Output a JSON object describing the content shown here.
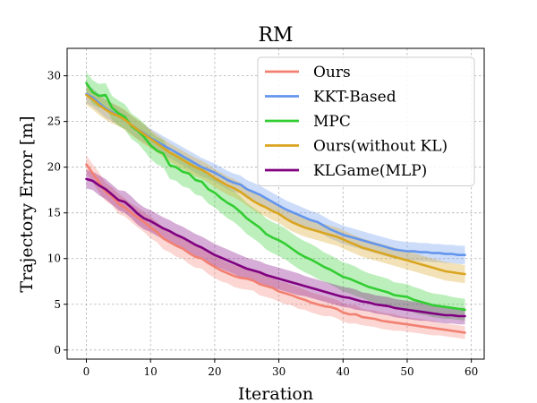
{
  "chart_data": {
    "type": "line",
    "title": "RM",
    "xlabel": "Iteration",
    "ylabel": "Trajectory Error [m]",
    "xlim": [
      -3,
      62
    ],
    "ylim": [
      -1,
      33
    ],
    "xticks": [
      0,
      10,
      20,
      30,
      40,
      50,
      60
    ],
    "yticks": [
      0,
      5,
      10,
      15,
      20,
      25,
      30
    ],
    "grid": true,
    "legend_position": "top-right",
    "x": [
      0,
      1,
      2,
      3,
      4,
      5,
      6,
      7,
      8,
      9,
      10,
      11,
      12,
      13,
      14,
      15,
      16,
      17,
      18,
      19,
      20,
      21,
      22,
      23,
      24,
      25,
      26,
      27,
      28,
      29,
      30,
      31,
      32,
      33,
      34,
      35,
      36,
      37,
      38,
      39,
      40,
      41,
      42,
      43,
      44,
      45,
      46,
      47,
      48,
      49,
      50,
      51,
      52,
      53,
      54,
      55,
      56,
      57,
      58,
      59
    ],
    "series": [
      {
        "name": "Ours",
        "color": "#f28072",
        "values": [
          20.3,
          19.3,
          18.3,
          17.3,
          16.8,
          16.0,
          15.6,
          15.0,
          14.5,
          14.0,
          13.4,
          12.9,
          12.2,
          11.8,
          11.4,
          11.1,
          10.6,
          10.2,
          10.0,
          9.5,
          9.1,
          8.7,
          8.4,
          8.1,
          7.9,
          7.8,
          7.6,
          7.2,
          7.0,
          6.8,
          6.4,
          6.2,
          6.0,
          5.7,
          5.5,
          5.2,
          5.0,
          4.8,
          4.7,
          4.5,
          4.1,
          3.9,
          3.9,
          3.6,
          3.5,
          3.4,
          3.2,
          3.1,
          3.0,
          2.9,
          2.8,
          2.7,
          2.6,
          2.5,
          2.4,
          2.3,
          2.2,
          2.1,
          2.0,
          1.9
        ],
        "band": [
          1.0,
          1.0,
          1.1,
          1.0,
          1.0,
          1.1,
          1.0,
          1.0,
          1.1,
          1.1,
          1.2,
          1.1,
          1.2,
          1.1,
          1.2,
          1.1,
          1.2,
          1.2,
          1.1,
          1.2,
          1.2,
          1.2,
          1.1,
          1.2,
          1.2,
          1.2,
          1.1,
          1.2,
          1.2,
          1.2,
          1.1,
          1.2,
          1.1,
          1.2,
          1.1,
          1.1,
          1.1,
          1.1,
          1.0,
          1.0,
          1.0,
          1.0,
          1.0,
          0.9,
          0.9,
          0.9,
          0.9,
          0.9,
          0.9,
          0.8,
          0.8,
          0.8,
          0.8,
          0.8,
          0.8,
          0.7,
          0.7,
          0.7,
          0.7,
          0.7
        ]
      },
      {
        "name": "KKT-Based",
        "color": "#6495ed",
        "values": [
          28.0,
          27.6,
          27.0,
          26.4,
          26.0,
          25.6,
          25.2,
          24.6,
          24.1,
          23.7,
          23.2,
          22.8,
          22.4,
          22.0,
          21.6,
          21.2,
          20.8,
          20.4,
          20.0,
          19.7,
          19.4,
          19.0,
          18.6,
          18.3,
          18.1,
          17.6,
          17.3,
          17.0,
          16.6,
          16.2,
          15.8,
          15.4,
          15.1,
          14.8,
          14.5,
          14.2,
          14.0,
          13.6,
          13.2,
          12.9,
          12.6,
          12.4,
          12.2,
          12.0,
          11.8,
          11.6,
          11.4,
          11.2,
          11.0,
          10.9,
          10.8,
          10.8,
          10.7,
          10.7,
          10.6,
          10.6,
          10.5,
          10.5,
          10.4,
          10.4
        ],
        "band": [
          1.0,
          1.0,
          1.0,
          1.0,
          1.0,
          1.0,
          1.0,
          1.0,
          1.0,
          1.0,
          1.0,
          1.0,
          1.0,
          1.0,
          1.0,
          1.0,
          1.0,
          1.0,
          1.0,
          1.0,
          1.0,
          1.0,
          1.0,
          1.0,
          1.0,
          1.0,
          1.0,
          1.0,
          1.0,
          1.0,
          1.0,
          1.0,
          1.0,
          1.0,
          1.0,
          1.0,
          1.0,
          1.0,
          1.0,
          1.0,
          1.0,
          1.0,
          1.0,
          1.0,
          1.0,
          1.0,
          1.0,
          1.0,
          1.0,
          1.0,
          1.0,
          1.0,
          1.0,
          1.0,
          1.0,
          1.0,
          1.0,
          1.0,
          1.0,
          1.0
        ]
      },
      {
        "name": "MPC",
        "color": "#32cd32",
        "values": [
          29.2,
          28.2,
          27.8,
          27.9,
          26.5,
          25.9,
          25.5,
          24.5,
          24.0,
          23.3,
          22.4,
          21.8,
          21.5,
          20.2,
          20.0,
          19.5,
          19.3,
          18.6,
          18.4,
          17.6,
          17.2,
          16.6,
          16.1,
          15.7,
          15.1,
          14.4,
          13.9,
          13.4,
          12.7,
          12.3,
          12.0,
          11.6,
          11.1,
          10.6,
          10.2,
          9.9,
          9.5,
          9.1,
          8.8,
          8.4,
          8.0,
          7.8,
          7.5,
          7.2,
          6.9,
          6.7,
          6.5,
          6.3,
          6.0,
          5.9,
          5.8,
          5.5,
          5.3,
          5.1,
          4.9,
          4.8,
          4.7,
          4.6,
          4.5,
          4.4
        ],
        "band": [
          1.2,
          1.3,
          1.3,
          1.3,
          1.3,
          1.4,
          1.4,
          1.4,
          1.4,
          1.5,
          1.5,
          1.5,
          1.5,
          1.5,
          1.5,
          1.6,
          1.6,
          1.6,
          1.6,
          1.6,
          1.6,
          1.6,
          1.7,
          1.7,
          1.7,
          1.7,
          1.7,
          1.7,
          1.7,
          1.7,
          1.7,
          1.7,
          1.7,
          1.7,
          1.7,
          1.7,
          1.7,
          1.6,
          1.6,
          1.6,
          1.6,
          1.6,
          1.6,
          1.5,
          1.5,
          1.5,
          1.5,
          1.5,
          1.4,
          1.4,
          1.4,
          1.4,
          1.4,
          1.3,
          1.3,
          1.3,
          1.3,
          1.2,
          1.2,
          1.2
        ]
      },
      {
        "name": "Ours(without KL)",
        "color": "#daa520",
        "values": [
          27.9,
          27.4,
          26.8,
          26.3,
          25.9,
          25.6,
          25.2,
          24.6,
          24.1,
          23.6,
          23.1,
          22.6,
          22.1,
          21.6,
          21.2,
          20.8,
          20.4,
          20.0,
          19.7,
          19.3,
          18.8,
          18.4,
          18.0,
          17.7,
          17.3,
          16.8,
          16.3,
          15.9,
          15.6,
          15.2,
          14.9,
          14.4,
          14.0,
          13.7,
          13.4,
          13.2,
          13.0,
          12.8,
          12.6,
          12.4,
          12.1,
          11.8,
          11.5,
          11.2,
          11.0,
          10.8,
          10.6,
          10.4,
          10.2,
          10.0,
          9.8,
          9.6,
          9.4,
          9.2,
          9.0,
          8.8,
          8.6,
          8.5,
          8.4,
          8.3
        ],
        "band": [
          1.1,
          1.1,
          1.1,
          1.1,
          1.1,
          1.1,
          1.1,
          1.1,
          1.1,
          1.1,
          1.0,
          1.0,
          1.0,
          1.0,
          1.0,
          1.0,
          1.0,
          1.0,
          1.0,
          1.0,
          1.0,
          1.0,
          1.0,
          1.0,
          1.0,
          1.0,
          1.0,
          1.0,
          1.0,
          1.0,
          1.0,
          1.0,
          1.0,
          1.0,
          1.0,
          1.0,
          1.0,
          1.0,
          1.0,
          1.0,
          1.0,
          1.0,
          1.0,
          1.0,
          1.0,
          1.0,
          1.0,
          1.0,
          1.0,
          1.0,
          1.0,
          1.0,
          1.0,
          1.0,
          1.0,
          1.0,
          1.0,
          1.0,
          1.0,
          1.0
        ]
      },
      {
        "name": "KLGame(MLP)",
        "color": "#800080",
        "values": [
          18.7,
          18.5,
          18.0,
          17.6,
          17.0,
          16.4,
          16.2,
          15.6,
          14.9,
          14.4,
          14.1,
          13.7,
          13.3,
          13.0,
          12.6,
          12.3,
          11.9,
          11.5,
          11.2,
          10.8,
          10.4,
          10.1,
          9.8,
          9.5,
          9.2,
          8.9,
          8.7,
          8.5,
          8.2,
          8.0,
          7.8,
          7.6,
          7.4,
          7.2,
          7.0,
          6.8,
          6.6,
          6.4,
          6.2,
          6.0,
          5.8,
          5.7,
          5.5,
          5.3,
          5.2,
          5.0,
          4.9,
          4.8,
          4.6,
          4.5,
          4.4,
          4.3,
          4.2,
          4.1,
          4.0,
          3.9,
          3.8,
          3.8,
          3.7,
          3.7
        ],
        "band": [
          1.0,
          1.0,
          1.1,
          1.1,
          1.1,
          1.1,
          1.2,
          1.2,
          1.2,
          1.2,
          1.2,
          1.2,
          1.2,
          1.2,
          1.2,
          1.2,
          1.2,
          1.2,
          1.2,
          1.2,
          1.2,
          1.2,
          1.2,
          1.2,
          1.2,
          1.2,
          1.2,
          1.2,
          1.2,
          1.2,
          1.2,
          1.2,
          1.2,
          1.2,
          1.1,
          1.1,
          1.1,
          1.1,
          1.1,
          1.1,
          1.1,
          1.1,
          1.1,
          1.0,
          1.0,
          1.0,
          1.0,
          1.0,
          1.0,
          1.0,
          1.0,
          1.0,
          1.0,
          0.9,
          0.9,
          0.9,
          0.9,
          0.9,
          0.9,
          0.9
        ]
      }
    ]
  }
}
